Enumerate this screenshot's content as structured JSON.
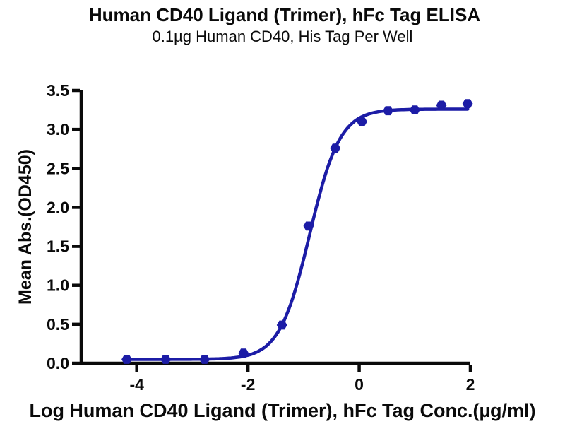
{
  "chart_data": {
    "type": "scatter-line",
    "title": "Human CD40 Ligand (Trimer), hFc Tag ELISA",
    "subtitle": "0.1µg Human CD40, His Tag Per Well",
    "xlabel": "Log Human CD40 Ligand (Trimer), hFc Tag Conc.(µg/ml)",
    "ylabel": "Mean Abs.(OD450)",
    "xlim": [
      -5,
      2
    ],
    "ylim": [
      0,
      3.5
    ],
    "xticks": [
      "-4",
      "-2",
      "0",
      "2"
    ],
    "yticks": [
      "0.0",
      "0.5",
      "1.0",
      "1.5",
      "2.0",
      "2.5",
      "3.0",
      "3.5"
    ],
    "grid": false,
    "legend": "none",
    "marker": "hexagon",
    "colors": {
      "series": "#1C1CA6",
      "axis": "#0a0a0a",
      "background": "#ffffff"
    },
    "points": {
      "x_log_conc": [
        -4.18,
        -3.48,
        -2.78,
        -2.08,
        -1.39,
        -0.91,
        -0.43,
        0.05,
        0.52,
        1.0,
        1.48,
        1.95
      ],
      "y_od450": [
        0.05,
        0.05,
        0.05,
        0.13,
        0.49,
        1.76,
        2.76,
        3.1,
        3.24,
        3.25,
        3.31,
        3.33
      ]
    },
    "fit_curve": {
      "model": "4PL",
      "bottom": 0.05,
      "top": 3.26,
      "logEC50": -0.89,
      "hillslope": 1.6
    }
  }
}
